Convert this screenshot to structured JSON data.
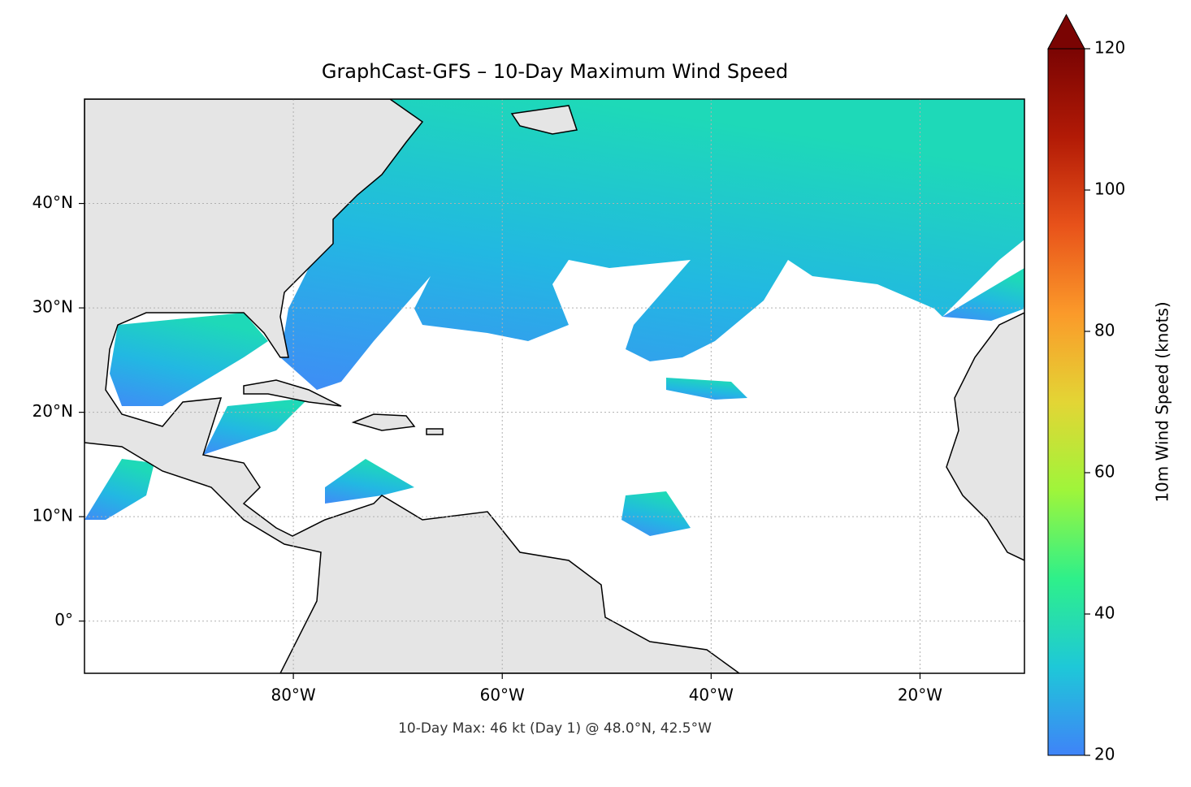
{
  "chart_data": {
    "type": "map",
    "title": "GraphCast-GFS – 10-Day Maximum Wind Speed",
    "annotation": "10-Day Max: 46 kt (Day 1) @ 48.0°N, 42.5°W",
    "xlim": [
      -100,
      -10
    ],
    "ylim": [
      -5,
      50
    ],
    "xticks": [
      {
        "value": -80,
        "label": "80°W"
      },
      {
        "value": -60,
        "label": "60°W"
      },
      {
        "value": -40,
        "label": "40°W"
      },
      {
        "value": -20,
        "label": "20°W"
      }
    ],
    "yticks": [
      {
        "value": 0,
        "label": "0°"
      },
      {
        "value": 10,
        "label": "10°N"
      },
      {
        "value": 20,
        "label": "20°N"
      },
      {
        "value": 30,
        "label": "30°N"
      },
      {
        "value": 40,
        "label": "40°N"
      }
    ],
    "grid": true,
    "colorbar": {
      "label": "10m Wind Speed (knots)",
      "lim": [
        20,
        120
      ],
      "ticks": [
        20,
        40,
        60,
        80,
        100,
        120
      ],
      "extend": "max",
      "colors": [
        "#3f83f8",
        "#1ec8d8",
        "#2ef08a",
        "#9ff53a",
        "#e3d535",
        "#fb9a2a",
        "#e8521a",
        "#b21a06",
        "#7a0403"
      ]
    }
  }
}
